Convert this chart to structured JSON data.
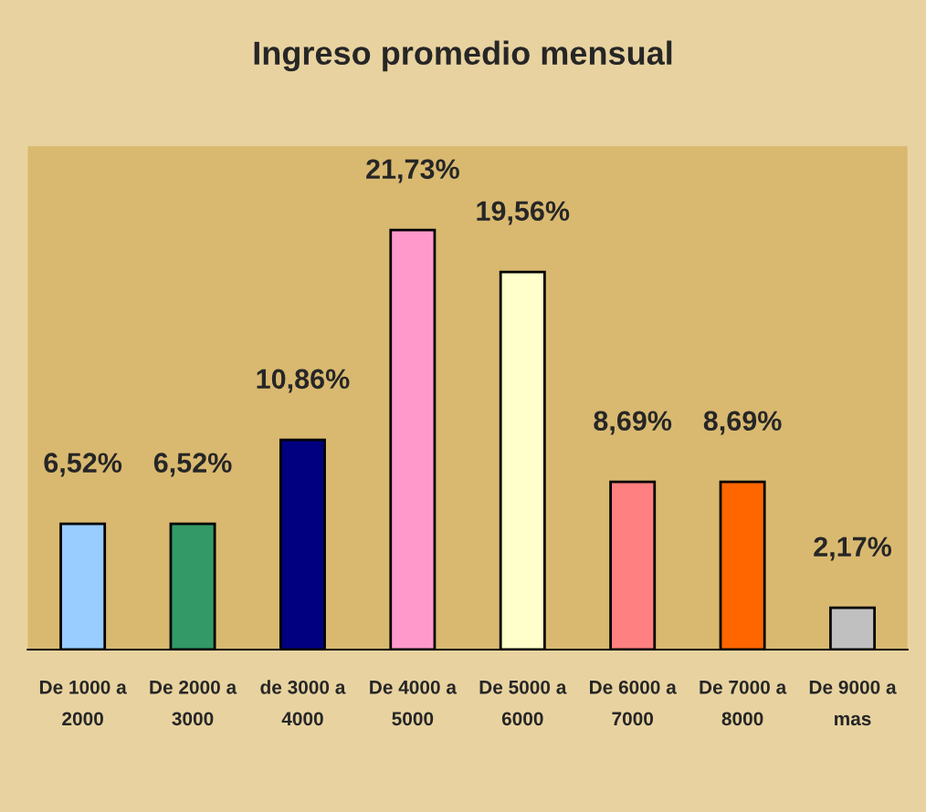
{
  "chart_data": {
    "type": "bar",
    "title": "Ingreso promedio mensual",
    "categories": [
      "De 1000 a\n2000",
      "De 2000 a\n3000",
      "de 3000 a\n4000",
      "De 4000 a\n5000",
      "De 5000 a\n6000",
      "De 6000 a\n7000",
      "De 7000 a\n8000",
      "De 9000 a\nmas"
    ],
    "values": [
      6.52,
      6.52,
      10.86,
      21.73,
      19.56,
      8.69,
      8.69,
      2.17
    ],
    "value_labels": [
      "6,52%",
      "6,52%",
      "10,86%",
      "21,73%",
      "19,56%",
      "8,69%",
      "8,69%",
      "2,17%"
    ],
    "colors": [
      "#99ccff",
      "#339966",
      "#000080",
      "#ff99cc",
      "#ffffcc",
      "#ff8080",
      "#ff6600",
      "#c0c0c0"
    ],
    "grid": false,
    "legend": false
  }
}
